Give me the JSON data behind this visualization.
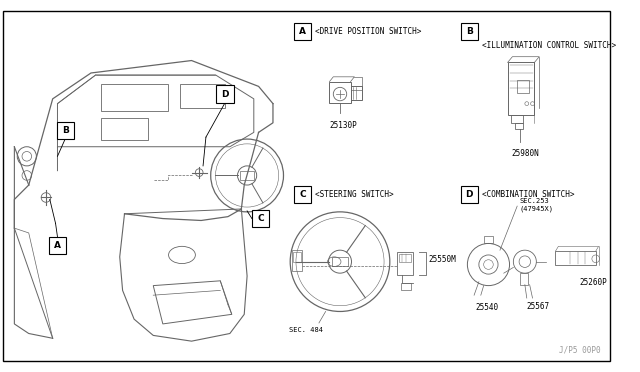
{
  "bg_color": "#ffffff",
  "line_color": "#666666",
  "text_color": "#000000",
  "fig_width": 6.4,
  "fig_height": 3.72,
  "watermark": "J/P5 00P0",
  "label_A": "A",
  "label_B": "B",
  "label_C": "C",
  "label_D": "D",
  "section_A_title": "<DRIVE POSITION SWITCH>",
  "section_B_title": "<ILLUMINATION CONTROL SWITCH>",
  "section_C_title": "<STEERING SWITCH>",
  "section_D_title": "<COMBINATION SWITCH>",
  "part_A": "25130P",
  "part_B": "25980N",
  "part_C": "25550M",
  "part_D1_line1": "SEC.253",
  "part_D1_line2": "(47945X)",
  "part_D2": "25260P",
  "part_D3": "25540",
  "part_D4": "25567",
  "sec_ref": "SEC. 484"
}
